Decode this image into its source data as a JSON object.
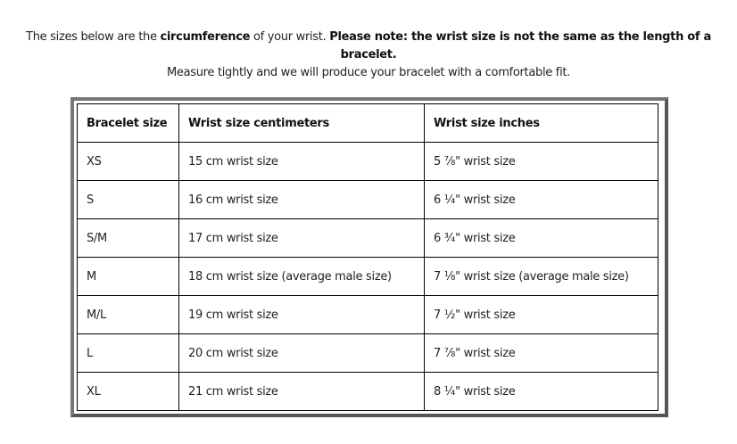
{
  "intro": {
    "part1": "The sizes below are the ",
    "part2": "circumference",
    "part3": " of your wrist. ",
    "part4": "Please note: the wrist size is not the same as the length of a bracelet.",
    "line2": "Measure tightly and we will produce your bracelet with a comfortable fit."
  },
  "table": {
    "headers": [
      "Bracelet size",
      "Wrist size centimeters",
      "Wrist size inches"
    ],
    "rows": [
      [
        "XS",
        "15 cm wrist size",
        "5 ⅞\" wrist size"
      ],
      [
        "S",
        "16 cm wrist size",
        "6 ¼\" wrist size"
      ],
      [
        "S/M",
        "17 cm wrist size",
        "6 ¾\" wrist size"
      ],
      [
        "M",
        "18 cm wrist size (average male size)",
        "7 ⅛\" wrist size (average male size)"
      ],
      [
        "M/L",
        "19 cm wrist size",
        "7 ½\" wrist size"
      ],
      [
        "L",
        "20 cm wrist size",
        "7 ⅞\" wrist size"
      ],
      [
        "XL",
        "21 cm wrist size",
        "8 ¼\" wrist size"
      ]
    ]
  }
}
